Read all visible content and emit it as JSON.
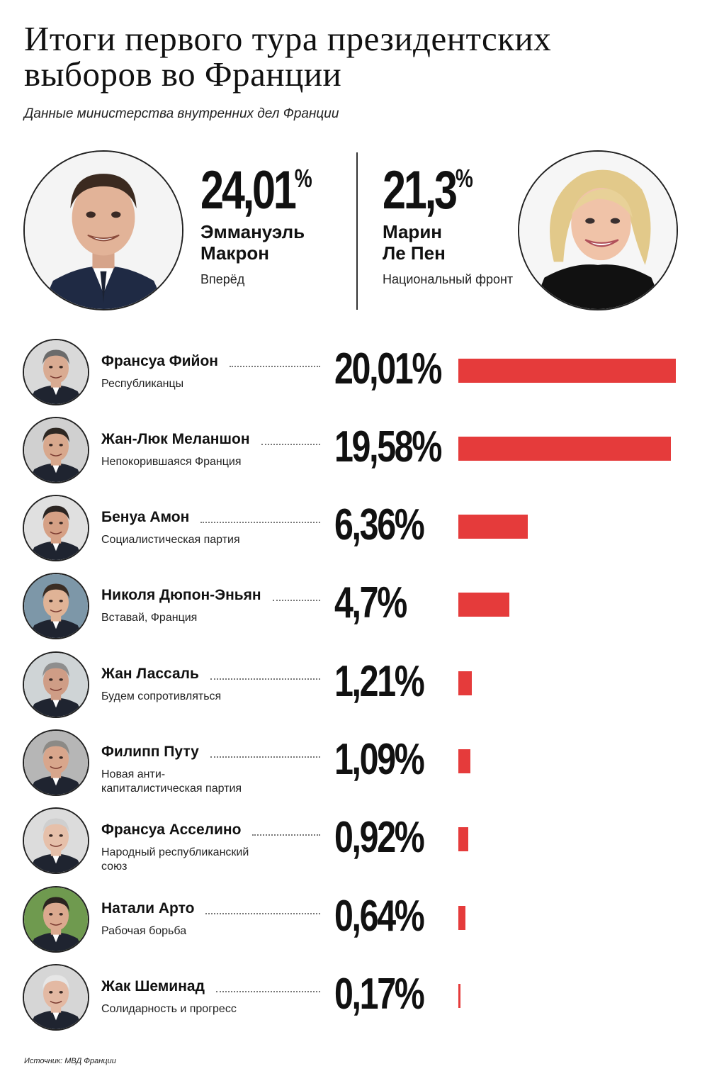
{
  "chart_data": {
    "type": "bar",
    "title": "Итоги первого тура президентских выборов во Франции",
    "subtitle": "Данные министерства внутренних дел Франции",
    "leaders": [
      {
        "name_line1": "Эммануэль",
        "name_line2": "Макрон",
        "party": "Вперёд",
        "value": 24.01,
        "label": "24,01",
        "unit": "%"
      },
      {
        "name_line1": "Марин",
        "name_line2": "Ле Пен",
        "party": "Национальный фронт",
        "value": 21.3,
        "label": "21,3",
        "unit": "%"
      }
    ],
    "categories": [
      "Франсуа Фийон",
      "Жан-Люк Меланшон",
      "Бенуа Амон",
      "Николя Дюпон-Эньян",
      "Жан Лассаль",
      "Филипп Путу",
      "Франсуа Асселино",
      "Натали Арто",
      "Жак Шеминад"
    ],
    "values": [
      20.01,
      19.58,
      6.36,
      4.7,
      1.21,
      1.09,
      0.92,
      0.64,
      0.17
    ],
    "rows": [
      {
        "name": "Франсуа Фийон",
        "party": "Республиканцы",
        "label": "20,01%",
        "value": 20.01
      },
      {
        "name": "Жан-Люк Меланшон",
        "party": "Непокорившаяся Франция",
        "label": "19,58%",
        "value": 19.58
      },
      {
        "name": "Бенуа Амон",
        "party": "Социалистическая партия",
        "label": "6,36%",
        "value": 6.36
      },
      {
        "name": "Николя Дюпон-Эньян",
        "party": "Вставай, Франция",
        "label": "4,7%",
        "value": 4.7
      },
      {
        "name": "Жан Лассаль",
        "party": "Будем сопротивляться",
        "label": "1,21%",
        "value": 1.21
      },
      {
        "name": "Филипп Путу",
        "party": "Новая анти-капиталистическая партия",
        "label": "1,09%",
        "value": 1.09
      },
      {
        "name": "Франсуа Асселино",
        "party": "Народный республиканский союз",
        "label": "0,92%",
        "value": 0.92
      },
      {
        "name": "Натали Арто",
        "party": "Рабочая борьба",
        "label": "0,64%",
        "value": 0.64
      },
      {
        "name": "Жак Шеминад",
        "party": "Солидарность и прогресс",
        "label": "0,17%",
        "value": 0.17
      }
    ],
    "bar_color": "#e53b3b",
    "source": "Источник: МВД Франции"
  }
}
